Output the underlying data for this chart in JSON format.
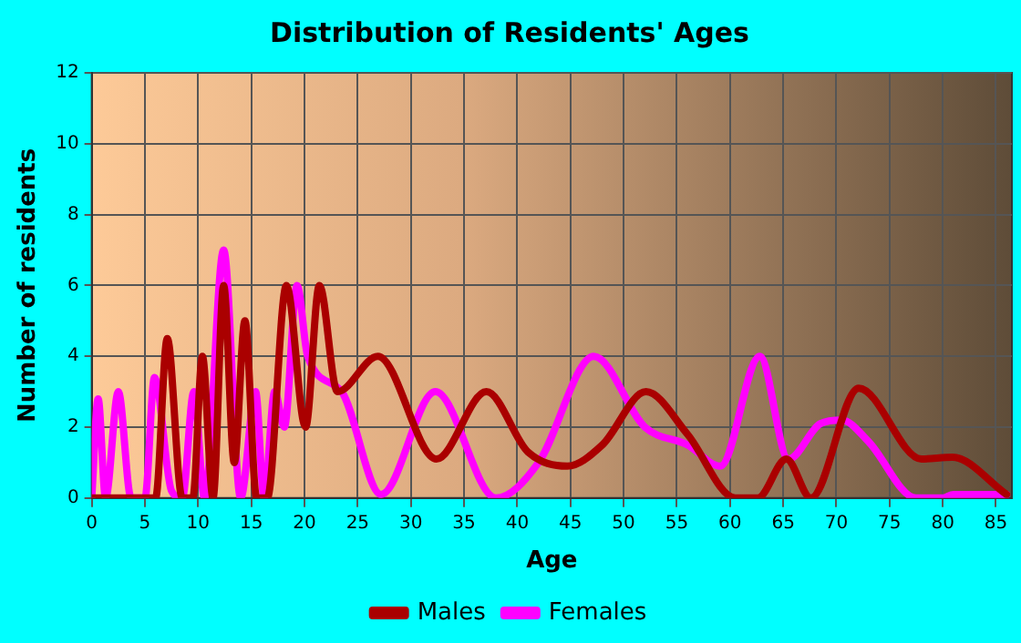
{
  "chart_data": {
    "type": "line",
    "title": "Distribution of Residents' Ages",
    "xlabel": "Age",
    "ylabel": "Number of residents",
    "xlim": [
      0,
      86.5
    ],
    "xticks": [
      0,
      5,
      10,
      15,
      20,
      25,
      30,
      35,
      40,
      45,
      50,
      55,
      60,
      65,
      70,
      75,
      80,
      85
    ],
    "ylim": [
      0,
      12
    ],
    "yticks": [
      0,
      2,
      4,
      6,
      8,
      10,
      12
    ],
    "grid": true,
    "legend": "bottom",
    "marker": "none",
    "line_style": "solid",
    "series": [
      {
        "name": "Males",
        "color": "#aa0000",
        "x": [
          0,
          5,
          6,
          7.1,
          8.5,
          9.5,
          10.4,
          11.4,
          12.4,
          13.4,
          14.4,
          15.5,
          16.5,
          18.3,
          20.1,
          21.4,
          23.1,
          26.9,
          32.4,
          37.1,
          41,
          44.7,
          48,
          52.1,
          56,
          60.5,
          62.6,
          65.3,
          67.6,
          72.1,
          78,
          80.9,
          86
        ],
        "values": [
          0,
          0,
          0,
          4.5,
          0,
          0,
          4,
          0,
          6,
          1,
          5,
          0,
          0,
          6,
          2,
          6,
          3,
          4,
          1.1,
          3,
          1.3,
          0.9,
          1.5,
          3,
          1.8,
          0,
          0,
          1.1,
          0,
          3.1,
          1.1,
          1.15,
          0.1
        ]
      },
      {
        "name": "Females",
        "color": "#ff00ff",
        "x": [
          0,
          0.6,
          1.3,
          2.5,
          3.7,
          5,
          5.9,
          7.5,
          8.5,
          9.6,
          10.6,
          12.4,
          14,
          15.4,
          16.2,
          17.2,
          18.1,
          19.3,
          20.3,
          23.5,
          27.2,
          32.3,
          38,
          42,
          47.2,
          52,
          56,
          59.1,
          62.8,
          65.5,
          68.5,
          70.5,
          73,
          77.5,
          80,
          81,
          86
        ],
        "values": [
          0,
          2.8,
          0,
          3,
          0,
          0,
          3.4,
          0.2,
          0,
          3,
          0,
          7,
          0,
          3,
          0,
          3,
          2,
          6,
          4,
          3,
          0.1,
          3,
          0,
          1,
          4,
          2,
          1.5,
          0.9,
          4,
          1.1,
          2.1,
          2.2,
          1.6,
          0,
          0,
          0.1,
          0.1
        ]
      }
    ]
  }
}
